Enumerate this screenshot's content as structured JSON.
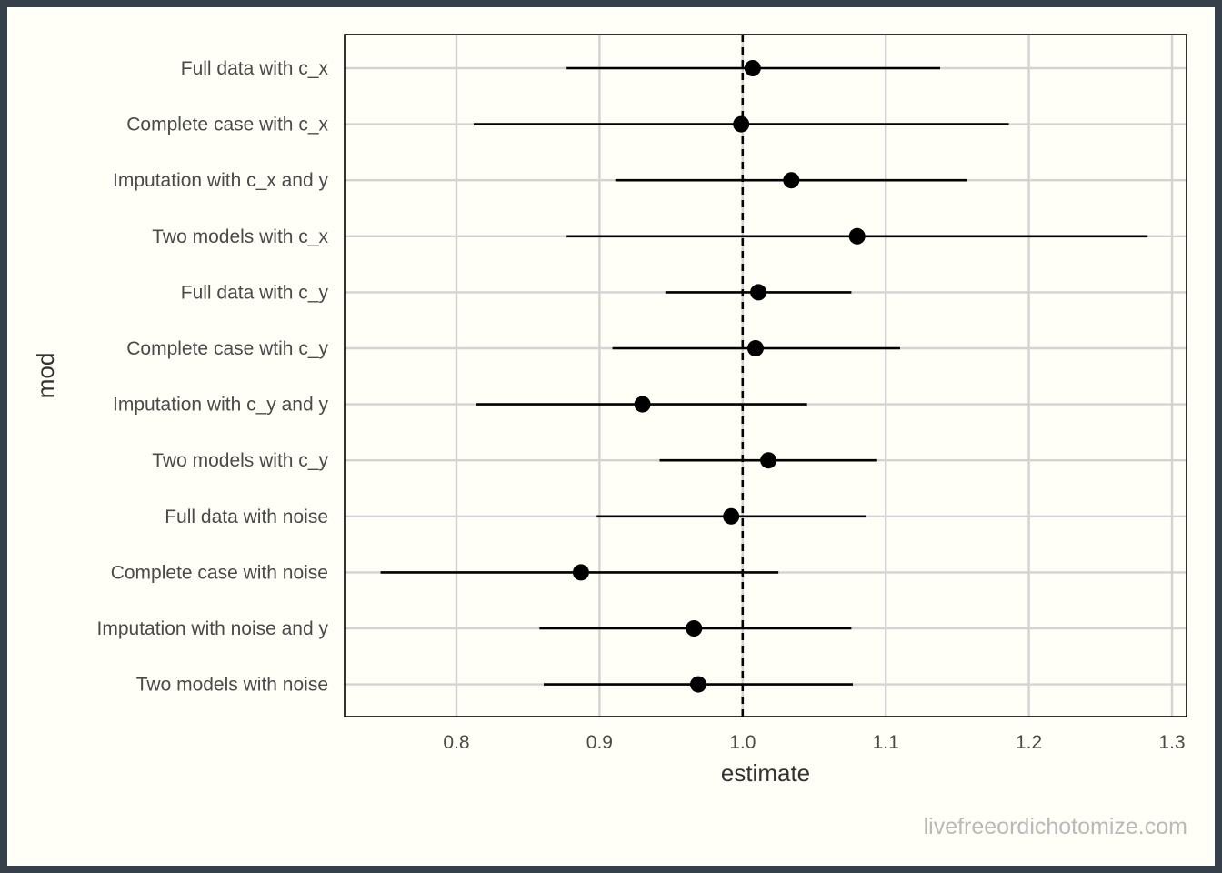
{
  "watermark": "livefreeordichotomize.com",
  "chart_data": {
    "type": "scatter",
    "subtype": "forest-plot",
    "title": "",
    "xlabel": "estimate",
    "ylabel": "mod",
    "xlim": [
      0.72,
      1.31
    ],
    "xticks": [
      0.8,
      0.9,
      1.0,
      1.1,
      1.2,
      1.3
    ],
    "xtick_labels": [
      "0.8",
      "0.9",
      "1.0",
      "1.1",
      "1.2",
      "1.3"
    ],
    "reference_line": 1.0,
    "grid": true,
    "rows": [
      {
        "label": "Full data with c_x",
        "estimate": 1.007,
        "lower": 0.877,
        "upper": 1.138
      },
      {
        "label": "Complete case with c_x",
        "estimate": 0.999,
        "lower": 0.812,
        "upper": 1.186
      },
      {
        "label": "Imputation with c_x and y",
        "estimate": 1.034,
        "lower": 0.911,
        "upper": 1.157
      },
      {
        "label": "Two models with c_x",
        "estimate": 1.08,
        "lower": 0.877,
        "upper": 1.283
      },
      {
        "label": "Full data with c_y",
        "estimate": 1.011,
        "lower": 0.946,
        "upper": 1.076
      },
      {
        "label": "Complete case wtih c_y",
        "estimate": 1.009,
        "lower": 0.909,
        "upper": 1.11
      },
      {
        "label": "Imputation with c_y and y",
        "estimate": 0.93,
        "lower": 0.814,
        "upper": 1.045
      },
      {
        "label": "Two models with c_y",
        "estimate": 1.018,
        "lower": 0.942,
        "upper": 1.094
      },
      {
        "label": "Full data with noise",
        "estimate": 0.992,
        "lower": 0.898,
        "upper": 1.086
      },
      {
        "label": "Complete case with noise",
        "estimate": 0.887,
        "lower": 0.747,
        "upper": 1.025
      },
      {
        "label": "Imputation with noise and y",
        "estimate": 0.966,
        "lower": 0.858,
        "upper": 1.076
      },
      {
        "label": "Two models with noise",
        "estimate": 0.969,
        "lower": 0.861,
        "upper": 1.077
      }
    ]
  }
}
